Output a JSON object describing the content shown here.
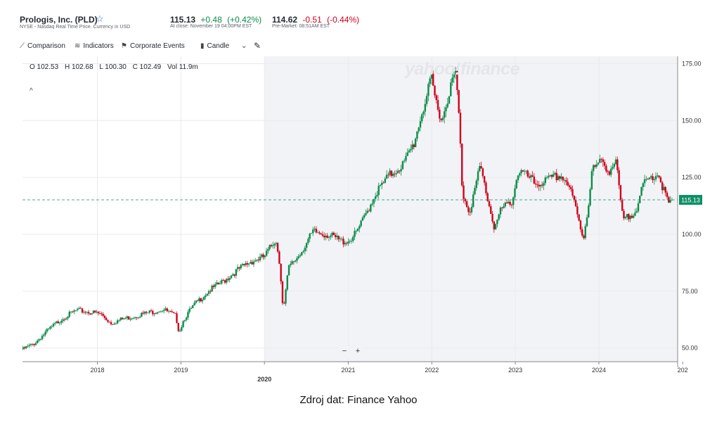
{
  "header": {
    "company": "Prologis, Inc. (PLD)",
    "exchange_note": "NYSE - Nasdaq Real Time Price. Currency in USD",
    "close_price": "115.13",
    "close_change": "+0.48",
    "close_change_pct": "(+0.42%)",
    "close_time": "At close: November 19 04:00PM EST",
    "pre_price": "114.62",
    "pre_change": "-0.51",
    "pre_change_pct": "(-0.44%)",
    "pre_time": "Pre-Market: 08:51AM EST"
  },
  "toolbar": {
    "comparison": "Comparison",
    "indicators": "Indicators",
    "corporate_events": "Corporate Events",
    "chart_type": "Candle"
  },
  "ohlc": {
    "o": "O 102.53",
    "h": "H 102.68",
    "l": "L 100.30",
    "c": "C 102.49",
    "vol": "Vol 11.9m"
  },
  "watermark": "yahoo!finance",
  "zoom": {
    "minus": "−",
    "plus": "+"
  },
  "caption": "Zdroj dat: Finance Yahoo",
  "colors": {
    "up": "#0c8c4a",
    "down": "#d0021b",
    "shade": "#f2f3f6",
    "grid": "#ebebeb",
    "last_price_line": "#0e8f67"
  },
  "icons": {
    "star": "star-icon",
    "comparison": "comparison-icon",
    "indicators": "indicators-icon",
    "events": "events-icon",
    "candle": "candle-icon",
    "chevron": "chevron-down-icon",
    "draw": "pencil-icon"
  },
  "chart_data": {
    "type": "candlestick",
    "x_tick_labels": [
      "2018",
      "2019",
      "2020",
      "2021",
      "2022",
      "2023",
      "2024",
      "202"
    ],
    "x_tick_dates": [
      "2018-01-01",
      "2019-01-01",
      "2020-01-01",
      "2021-01-01",
      "2022-01-01",
      "2023-01-01",
      "2024-01-01",
      "2025-01-01"
    ],
    "bold_x_tick": "2020",
    "y_ticks": [
      50,
      75,
      100,
      125,
      150,
      175
    ],
    "y_tick_labels": [
      "50.00",
      "75.00",
      "100.00",
      "125.00",
      "150.00",
      "175.00"
    ],
    "x_range": [
      "2017-02-08",
      "2024-12-10"
    ],
    "ylim": [
      44,
      177
    ],
    "shaded_region_start": "2020-01-01",
    "last_price": 115.13,
    "last_price_label": "115.13",
    "close_path": [
      [
        "2017-02-10",
        49.5
      ],
      [
        "2017-04-01",
        52
      ],
      [
        "2017-06-01",
        58
      ],
      [
        "2017-08-01",
        63
      ],
      [
        "2017-10-01",
        66.5
      ],
      [
        "2017-11-15",
        66
      ],
      [
        "2018-01-15",
        65
      ],
      [
        "2018-03-01",
        61
      ],
      [
        "2018-05-01",
        63
      ],
      [
        "2018-07-01",
        64.5
      ],
      [
        "2018-09-01",
        66
      ],
      [
        "2018-10-15",
        67
      ],
      [
        "2018-12-10",
        64
      ],
      [
        "2018-12-24",
        57
      ],
      [
        "2019-01-15",
        63
      ],
      [
        "2019-03-01",
        69
      ],
      [
        "2019-05-01",
        75
      ],
      [
        "2019-07-01",
        79
      ],
      [
        "2019-09-01",
        84
      ],
      [
        "2019-11-01",
        88
      ],
      [
        "2019-12-31",
        90
      ],
      [
        "2020-02-20",
        98
      ],
      [
        "2020-03-10",
        85
      ],
      [
        "2020-03-23",
        66
      ],
      [
        "2020-04-15",
        85
      ],
      [
        "2020-06-01",
        91
      ],
      [
        "2020-08-01",
        101
      ],
      [
        "2020-10-01",
        100
      ],
      [
        "2020-12-01",
        97
      ],
      [
        "2021-01-01",
        97
      ],
      [
        "2021-02-01",
        100
      ],
      [
        "2021-03-01",
        105
      ],
      [
        "2021-05-01",
        118
      ],
      [
        "2021-07-01",
        126
      ],
      [
        "2021-09-01",
        131
      ],
      [
        "2021-10-15",
        140
      ],
      [
        "2021-11-15",
        152
      ],
      [
        "2021-12-31",
        168
      ],
      [
        "2022-01-15",
        160
      ],
      [
        "2022-02-15",
        150
      ],
      [
        "2022-03-15",
        162
      ],
      [
        "2022-04-15",
        171
      ],
      [
        "2022-05-01",
        150
      ],
      [
        "2022-05-15",
        118
      ],
      [
        "2022-06-15",
        110
      ],
      [
        "2022-08-01",
        130
      ],
      [
        "2022-09-01",
        116
      ],
      [
        "2022-10-01",
        103
      ],
      [
        "2022-11-01",
        111
      ],
      [
        "2022-12-15",
        114
      ],
      [
        "2023-01-15",
        128
      ],
      [
        "2023-02-15",
        126
      ],
      [
        "2023-04-01",
        122
      ],
      [
        "2023-06-01",
        124
      ],
      [
        "2023-07-15",
        126
      ],
      [
        "2023-08-15",
        123
      ],
      [
        "2023-09-15",
        114
      ],
      [
        "2023-10-25",
        98
      ],
      [
        "2023-11-15",
        112
      ],
      [
        "2023-12-01",
        128
      ],
      [
        "2024-01-15",
        132
      ],
      [
        "2024-02-15",
        128
      ],
      [
        "2024-03-15",
        132
      ],
      [
        "2024-04-15",
        106
      ],
      [
        "2024-05-15",
        108
      ],
      [
        "2024-06-15",
        112
      ],
      [
        "2024-07-15",
        122
      ],
      [
        "2024-08-15",
        125
      ],
      [
        "2024-09-15",
        127
      ],
      [
        "2024-10-15",
        118
      ],
      [
        "2024-11-01",
        113
      ],
      [
        "2024-11-19",
        115.13
      ]
    ]
  }
}
